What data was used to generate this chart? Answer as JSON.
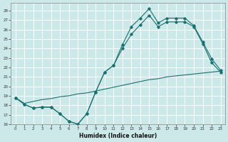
{
  "bg_color": "#cde8e8",
  "line_color": "#1a7070",
  "xlim": [
    -0.5,
    23.5
  ],
  "ylim": [
    16,
    28.8
  ],
  "yticks": [
    16,
    17,
    18,
    19,
    20,
    21,
    22,
    23,
    24,
    25,
    26,
    27,
    28
  ],
  "xticks": [
    0,
    1,
    2,
    3,
    4,
    5,
    6,
    7,
    8,
    9,
    10,
    11,
    12,
    13,
    14,
    15,
    16,
    17,
    18,
    19,
    20,
    21,
    22,
    23
  ],
  "xlabel": "Humidex (Indice chaleur)",
  "series_max_x": [
    0,
    1,
    2,
    3,
    4,
    5,
    6,
    7,
    8,
    9,
    10,
    11,
    12,
    13,
    14,
    15,
    16,
    17,
    18,
    19,
    20,
    21,
    22,
    23
  ],
  "series_max_y": [
    18.8,
    18.1,
    17.7,
    17.8,
    17.8,
    17.1,
    16.3,
    16.0,
    17.1,
    19.4,
    21.5,
    22.2,
    24.4,
    26.3,
    27.2,
    28.2,
    26.7,
    27.2,
    27.2,
    27.2,
    26.4,
    24.7,
    22.9,
    21.7
  ],
  "series_min_x": [
    0,
    1,
    2,
    3,
    4,
    5,
    6,
    7,
    8,
    9,
    10,
    11,
    12,
    13,
    14,
    15,
    16,
    17,
    18,
    19,
    20,
    21,
    22,
    23
  ],
  "series_min_y": [
    18.8,
    18.1,
    17.7,
    17.8,
    17.8,
    17.1,
    16.3,
    16.0,
    17.1,
    19.4,
    21.5,
    22.2,
    24.0,
    25.5,
    26.5,
    27.5,
    26.3,
    26.8,
    26.8,
    26.8,
    26.3,
    24.5,
    22.5,
    21.5
  ],
  "series_mean_x": [
    0,
    1,
    2,
    3,
    4,
    5,
    6,
    7,
    8,
    9,
    10,
    11,
    12,
    13,
    14,
    15,
    16,
    17,
    18,
    19,
    20,
    21,
    22,
    23
  ],
  "series_mean_y": [
    18.8,
    18.2,
    18.4,
    18.6,
    18.7,
    18.9,
    19.0,
    19.2,
    19.3,
    19.5,
    19.7,
    19.9,
    20.1,
    20.3,
    20.5,
    20.7,
    20.8,
    21.0,
    21.1,
    21.2,
    21.3,
    21.4,
    21.5,
    21.6
  ]
}
